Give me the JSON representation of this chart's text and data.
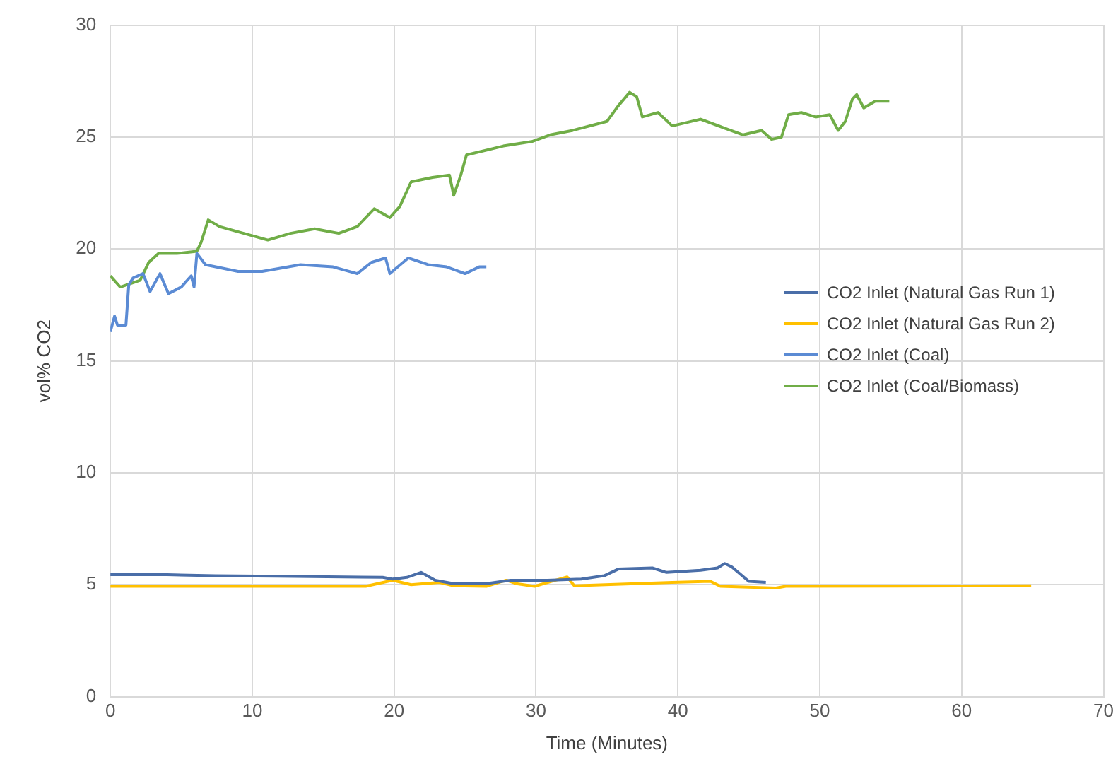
{
  "chart_data": {
    "type": "line",
    "xlabel": "Time (Minutes)",
    "ylabel": "vol% CO2",
    "xlim": [
      0,
      70
    ],
    "xticks": [
      0,
      10,
      20,
      30,
      40,
      50,
      60,
      70
    ],
    "ylim": [
      0,
      30
    ],
    "yticks": [
      0,
      5,
      10,
      15,
      20,
      25,
      30
    ],
    "grid": true,
    "legend": "right",
    "marker": "none",
    "line_style": "solid",
    "series": [
      {
        "name": "CO2 Inlet (Natural Gas Run 1)",
        "color": "#4a6ea8",
        "x": [
          0,
          4,
          7.4,
          11.8,
          19.2,
          19.9,
          20.9,
          21.9,
          22.9,
          24.2,
          26.5,
          28.2,
          30.8,
          33.2,
          34.8,
          35.8,
          38.2,
          39.2,
          41.6,
          42.8,
          43.3,
          43.8,
          45,
          46.2
        ],
        "values": [
          5.45,
          5.45,
          5.4,
          5.38,
          5.33,
          5.25,
          5.33,
          5.55,
          5.2,
          5.05,
          5.05,
          5.2,
          5.2,
          5.25,
          5.4,
          5.7,
          5.75,
          5.55,
          5.65,
          5.75,
          5.95,
          5.8,
          5.15,
          5.1
        ]
      },
      {
        "name": "CO2 Inlet (Natural Gas Run 2)",
        "color": "#ffc000",
        "x": [
          0,
          18,
          19.9,
          21.2,
          23.2,
          24.2,
          26.5,
          27.9,
          28.6,
          29.9,
          32.2,
          32.7,
          39.6,
          42.3,
          43,
          46.9,
          47.6,
          64.9
        ],
        "values": [
          4.93,
          4.93,
          5.2,
          5,
          5.1,
          4.95,
          4.93,
          5.2,
          5.05,
          4.93,
          5.35,
          4.95,
          5.1,
          5.15,
          4.93,
          4.85,
          4.93,
          4.95
        ]
      },
      {
        "name": "CO2 Inlet (Coal)",
        "color": "#5b8bd4",
        "x": [
          0,
          0.3,
          0.5,
          1.1,
          1.3,
          1.6,
          2.3,
          2.8,
          3.5,
          4.1,
          5,
          5.7,
          5.9,
          6.1,
          6.7,
          9,
          10.7,
          13.4,
          15.7,
          17.4,
          18.4,
          19.4,
          19.7,
          21,
          22.4,
          23.7,
          25,
          26,
          26.5
        ],
        "values": [
          16.3,
          17,
          16.6,
          16.6,
          18.4,
          18.7,
          18.9,
          18.1,
          18.9,
          18,
          18.3,
          18.8,
          18.3,
          19.8,
          19.3,
          19,
          19,
          19.3,
          19.2,
          18.9,
          19.4,
          19.6,
          18.9,
          19.6,
          19.3,
          19.2,
          18.9,
          19.2,
          19.2
        ]
      },
      {
        "name": "CO2 Inlet (Coal/Biomass)",
        "color": "#70ad47",
        "x": [
          0,
          0.7,
          2.1,
          2.7,
          3.4,
          4.7,
          6.1,
          6.4,
          6.9,
          7.7,
          9.4,
          11.1,
          12.7,
          14.4,
          16.1,
          17.4,
          18.6,
          19.7,
          20.4,
          21.2,
          22.7,
          23.9,
          24.2,
          24.7,
          25.1,
          27.7,
          29.7,
          31,
          32.6,
          35,
          35.8,
          36.6,
          37.1,
          37.5,
          38.6,
          39.6,
          41.6,
          43.3,
          44.6,
          45.9,
          46.6,
          47.3,
          47.8,
          48.7,
          49.7,
          50.7,
          51.3,
          51.8,
          52.3,
          52.6,
          53.1,
          53.9,
          54.9
        ],
        "values": [
          18.8,
          18.3,
          18.6,
          19.4,
          19.8,
          19.8,
          19.9,
          20.3,
          21.3,
          21,
          20.7,
          20.4,
          20.7,
          20.9,
          20.7,
          21,
          21.8,
          21.4,
          21.9,
          23,
          23.2,
          23.3,
          22.4,
          23.3,
          24.2,
          24.6,
          24.8,
          25.1,
          25.3,
          25.7,
          26.4,
          27,
          26.8,
          25.9,
          26.1,
          25.5,
          25.8,
          25.4,
          25.1,
          25.3,
          24.9,
          25,
          26,
          26.1,
          25.9,
          26,
          25.3,
          25.7,
          26.7,
          26.9,
          26.3,
          26.6,
          26.6
        ]
      }
    ]
  }
}
